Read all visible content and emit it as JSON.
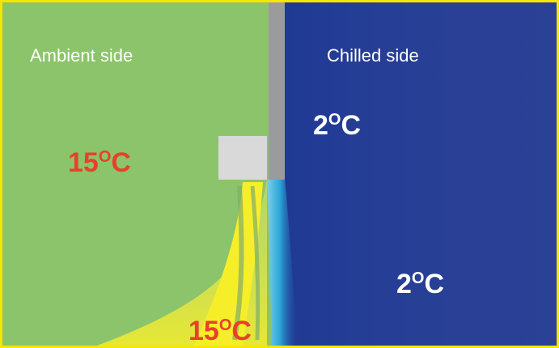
{
  "sides": {
    "ambient": "Ambient side",
    "chilled": "Chilled side"
  },
  "temperatures": [
    {
      "number": "2",
      "degree": "O",
      "unit": "C"
    },
    {
      "number": "15",
      "degree": "O",
      "unit": "C"
    },
    {
      "number": "2",
      "degree": "O",
      "unit": "C"
    },
    {
      "number": "15",
      "degree": "O",
      "unit": "C"
    }
  ]
}
